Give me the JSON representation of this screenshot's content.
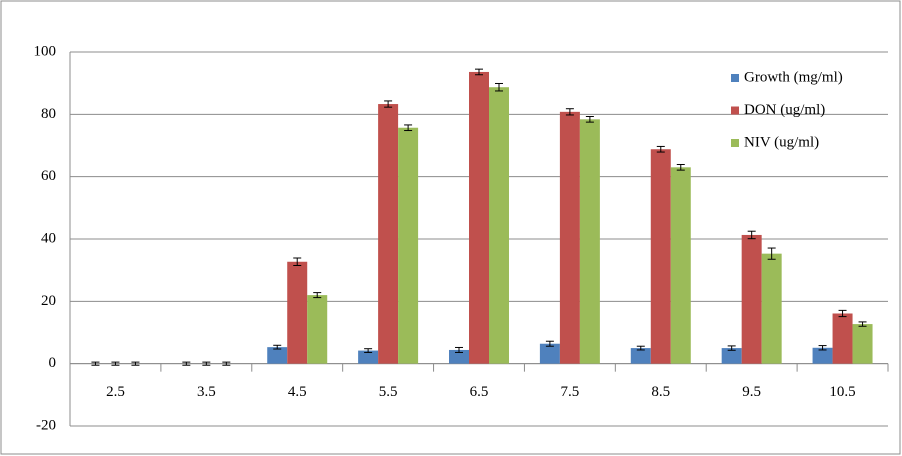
{
  "chart_data": {
    "type": "bar",
    "categories": [
      "2.5",
      "3.5",
      "4.5",
      "5.5",
      "6.5",
      "7.5",
      "8.5",
      "9.5",
      "10.5"
    ],
    "series": [
      {
        "name": "Growth (mg/ml)",
        "color": "#4f81bd",
        "values": [
          0,
          0,
          5.3,
          4.2,
          4.4,
          6.4,
          5.0,
          5.0,
          5.1
        ],
        "errors": [
          0.5,
          0.5,
          0.6,
          0.6,
          0.8,
          0.8,
          0.6,
          0.7,
          0.7
        ]
      },
      {
        "name": "DON (ug/ml)",
        "color": "#c0504d",
        "values": [
          0,
          0,
          32.7,
          83.3,
          93.6,
          80.8,
          68.8,
          41.3,
          16.1
        ],
        "errors": [
          0.5,
          0.5,
          1.2,
          1.0,
          0.9,
          1.0,
          0.9,
          1.2,
          1.0
        ]
      },
      {
        "name": "NIV (ug/ml)",
        "color": "#9bbb59",
        "values": [
          0,
          0,
          22.0,
          75.7,
          88.7,
          78.4,
          63.0,
          35.3,
          12.7
        ],
        "errors": [
          0.5,
          0.5,
          0.8,
          0.9,
          1.2,
          0.9,
          0.9,
          1.8,
          0.7
        ]
      }
    ],
    "ylim": [
      -20,
      100
    ],
    "yticks": [
      -20,
      0,
      20,
      40,
      60,
      80,
      100
    ],
    "grid": true,
    "legend": "right"
  }
}
